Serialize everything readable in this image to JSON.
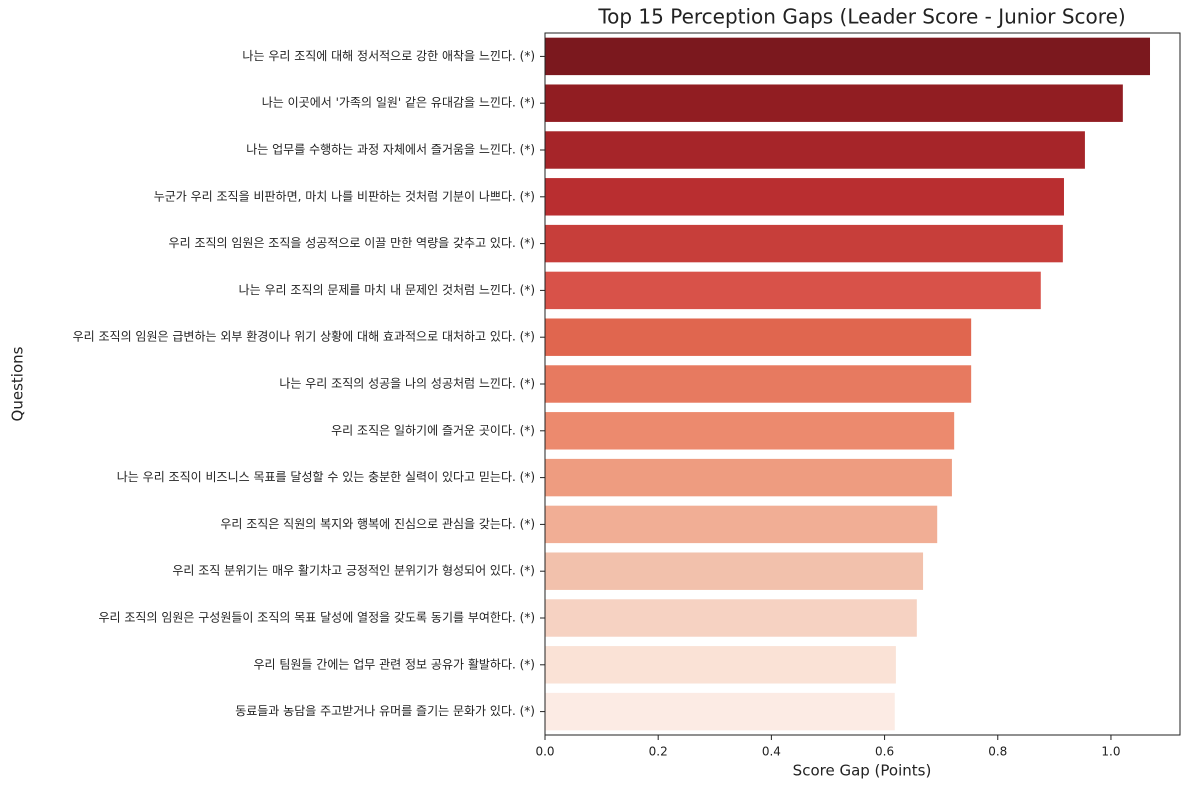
{
  "chart_data": {
    "type": "bar",
    "orientation": "horizontal",
    "title": "Top 15 Perception Gaps (Leader Score - Junior Score)",
    "x_label": "Score Gap (Points)",
    "y_label": "Questions",
    "categories": [
      "나는 우리 조직에 대해 정서적으로 강한 애착을 느낀다. (*)",
      "나는 이곳에서 '가족의 일원' 같은 유대감을 느낀다. (*)",
      "나는 업무를 수행하는 과정 자체에서 즐거움을 느낀다. (*)",
      "누군가 우리 조직을 비판하면, 마치 나를 비판하는 것처럼 기분이 나쁘다. (*)",
      "우리 조직의 임원은 조직을 성공적으로 이끌 만한 역량을 갖추고 있다. (*)",
      "나는 우리 조직의 문제를 마치 내 문제인 것처럼 느낀다. (*)",
      "우리 조직의 임원은 급변하는 외부 환경이나 위기 상황에 대해 효과적으로 대처하고 있다. (*)",
      "나는 우리 조직의 성공을 나의 성공처럼 느낀다. (*)",
      "우리 조직은 일하기에 즐거운 곳이다. (*)",
      "나는 우리 조직이 비즈니스 목표를 달성할 수 있는 충분한 실력이 있다고 믿는다. (*)",
      "우리 조직은 직원의 복지와 행복에 진심으로 관심을 갖는다. (*)",
      "우리 조직 분위기는 매우 활기차고 긍정적인 분위기가 형성되어 있다. (*)",
      "우리 조직의 임원은 구성원들이 조직의 목표 달성에 열정을 갖도록 동기를 부여한다. (*)",
      "우리 팀원들 간에는 업무 관련 정보 공유가 활발하다. (*)",
      "동료들과 농담을 주고받거나 유머를 즐기는 문화가 있다. (*)"
    ],
    "values": [
      1.069,
      1.021,
      0.954,
      0.917,
      0.915,
      0.876,
      0.753,
      0.753,
      0.723,
      0.719,
      0.693,
      0.668,
      0.657,
      0.62,
      0.618
    ],
    "colors": [
      "#7b181e",
      "#911d22",
      "#a62529",
      "#b92e30",
      "#c73e3a",
      "#d85249",
      "#e0664f",
      "#e77a60",
      "#ec8a6e",
      "#ee9c80",
      "#f1ae95",
      "#f2c1ac",
      "#f6d2c2",
      "#fae2d6",
      "#fcebe4"
    ],
    "xlim": [
      0,
      1.122
    ],
    "xticks": [
      {
        "value": 0,
        "label": "0.0"
      },
      0.2,
      0.4,
      0.6,
      0.8,
      {
        "value": 1,
        "label": "1.0"
      }
    ],
    "grid": false
  }
}
